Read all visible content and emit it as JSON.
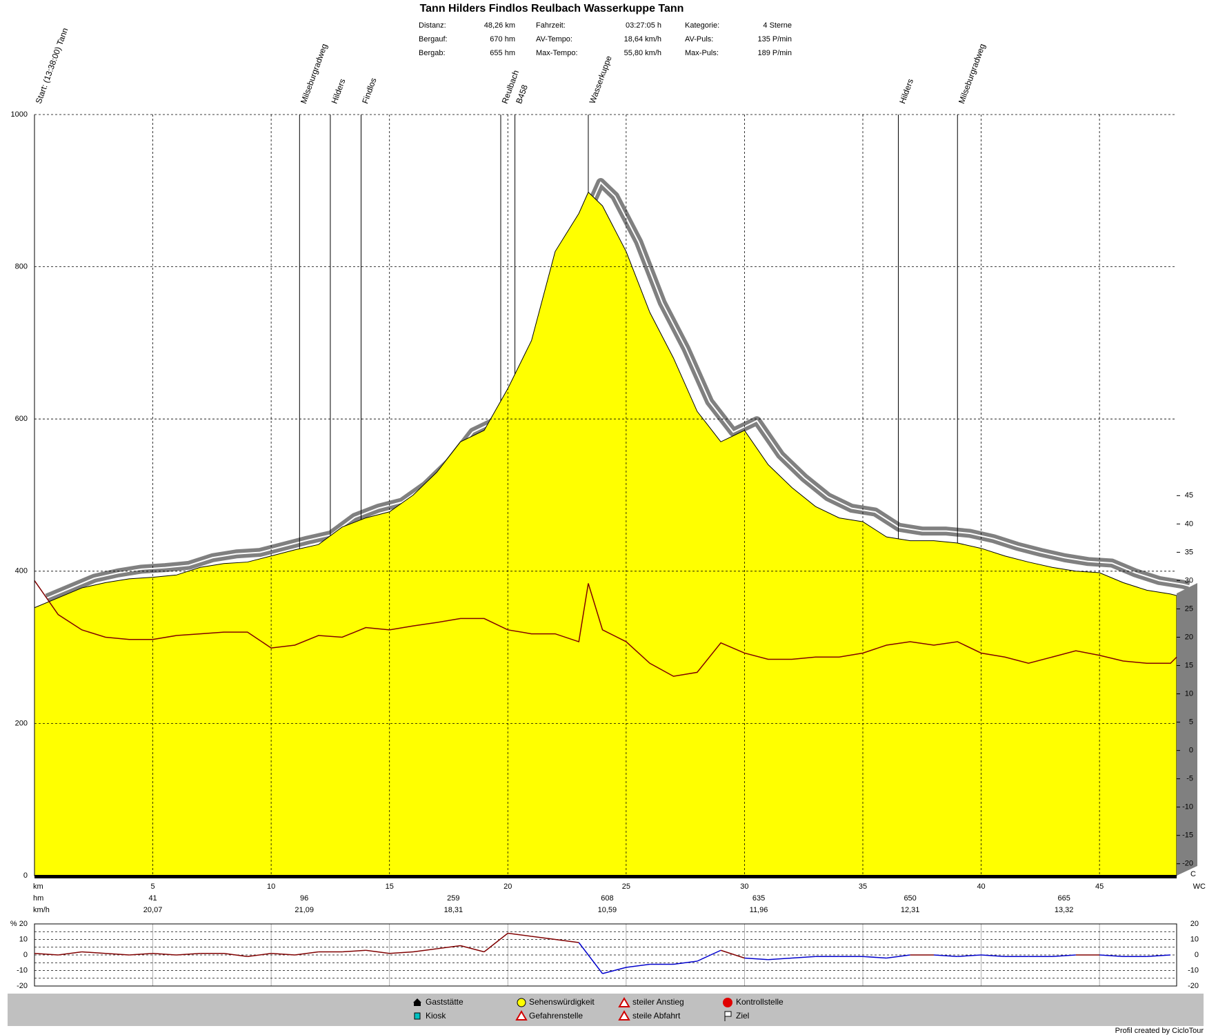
{
  "chart_data": [
    {
      "type": "area",
      "title": "Tann Hilders Findlos Reulbach Wasserkuppe Tann",
      "stats": [
        {
          "label": "Distanz:",
          "value": "48,26 km"
        },
        {
          "label": "Bergauf:",
          "value": "670 hm"
        },
        {
          "label": "Bergab:",
          "value": "655 hm"
        },
        {
          "label": "Fahrzeit:",
          "value": "03:27:05 h"
        },
        {
          "label": "AV-Tempo:",
          "value": "18,64 km/h"
        },
        {
          "label": "Max-Tempo:",
          "value": "55,80 km/h"
        },
        {
          "label": "Kategorie:",
          "value": "4 Sterne"
        },
        {
          "label": "AV-Puls:",
          "value": "135 P/min"
        },
        {
          "label": "Max-Puls:",
          "value": "189 P/min"
        }
      ],
      "xlabel": "km",
      "x": [
        0,
        1,
        2,
        3,
        4,
        5,
        6,
        7,
        8,
        9,
        10,
        11,
        12,
        13,
        14,
        15,
        16,
        17,
        18,
        19,
        20,
        21,
        22,
        23,
        23.4,
        24,
        25,
        26,
        27,
        28,
        29,
        30,
        31,
        32,
        33,
        34,
        35,
        36,
        37,
        38,
        39,
        40,
        41,
        42,
        43,
        44,
        45,
        46,
        47,
        48,
        48.26
      ],
      "series": [
        {
          "color": "#ffff00",
          "values": [
            352,
            365,
            378,
            385,
            390,
            392,
            395,
            405,
            410,
            412,
            420,
            428,
            435,
            458,
            470,
            478,
            500,
            530,
            570,
            585,
            640,
            703,
            820,
            870,
            898,
            880,
            820,
            740,
            680,
            610,
            570,
            585,
            540,
            510,
            485,
            470,
            465,
            445,
            440,
            440,
            437,
            430,
            420,
            412,
            405,
            400,
            398,
            385,
            375,
            370,
            368
          ]
        },
        {
          "color": "#800000",
          "axis": "y2",
          "values": [
            30,
            24,
            21.3,
            20,
            19.6,
            19.6,
            20.3,
            20.6,
            20.9,
            20.9,
            18.1,
            18.6,
            20.3,
            20,
            21.7,
            21.3,
            22,
            22.6,
            23.3,
            23.3,
            21.3,
            20.6,
            20.6,
            19.2,
            29.5,
            21.3,
            19.2,
            15.4,
            13.1,
            13.8,
            19,
            17.2,
            16.1,
            16.1,
            16.5,
            16.5,
            17.2,
            18.6,
            19.2,
            18.6,
            19.2,
            17.2,
            16.5,
            15.4,
            16.5,
            17.6,
            16.8,
            15.8,
            15.4,
            15.4,
            16.5
          ]
        }
      ],
      "xlim": [
        0,
        48.26
      ],
      "xticks": [
        5,
        10,
        15,
        20,
        25,
        30,
        35,
        40,
        45
      ],
      "ylim": [
        0,
        1000
      ],
      "yticks": [
        0,
        200,
        400,
        600,
        800,
        1000
      ],
      "y2lim": [
        -22.1,
        112.3
      ],
      "y2ticks": [
        -20,
        -15,
        -10,
        -5,
        0,
        5,
        10,
        15,
        20,
        25,
        30,
        35,
        40,
        45
      ],
      "grid": true,
      "annotations": [
        {
          "x": 0,
          "text": "Start: (13:38:00) Tann"
        },
        {
          "x": 11.2,
          "text": "Milseburgradweg"
        },
        {
          "x": 12.5,
          "text": "Hilders"
        },
        {
          "x": 13.8,
          "text": "Findlos"
        },
        {
          "x": 19.7,
          "text": "Reulbach"
        },
        {
          "x": 20.3,
          "text": "B458"
        },
        {
          "x": 23.4,
          "text": "Wasserkuppe"
        },
        {
          "x": 36.5,
          "text": "Hilders"
        },
        {
          "x": 39,
          "text": "Milseburgradweg"
        }
      ],
      "summary": {
        "x": [
          5,
          11.4,
          17.7,
          24.2,
          30.6,
          37,
          43.5
        ],
        "series": [
          {
            "name": "hm",
            "color": "#c00000",
            "values": [
              41,
              96,
              259,
              608,
              635,
              650,
              665
            ]
          },
          {
            "name": "km/h",
            "color": "#000000",
            "values": [
              20.07,
              21.09,
              18.31,
              10.59,
              11.96,
              12.31,
              13.32
            ],
            "value_labels": [
              "20,07",
              "21,09",
              "18,31",
              "10,59",
              "11,96",
              "12,31",
              "13,32"
            ]
          }
        ]
      },
      "corner_labels": [
        "C",
        "WC"
      ]
    },
    {
      "type": "line",
      "x": [
        0,
        1,
        2,
        3,
        4,
        5,
        6,
        7,
        8,
        9,
        10,
        11,
        12,
        13,
        14,
        15,
        16,
        17,
        18,
        19,
        20,
        21,
        22,
        23,
        24,
        25,
        26,
        27,
        28,
        29,
        30,
        31,
        32,
        33,
        34,
        35,
        36,
        37,
        38,
        39,
        40,
        41,
        42,
        43,
        44,
        45,
        46,
        47,
        48
      ],
      "values": [
        1,
        0,
        2,
        1,
        0,
        1,
        0,
        1,
        1,
        -1,
        1,
        0,
        2,
        2,
        3,
        1,
        2,
        4,
        6,
        2,
        14,
        12,
        10,
        8,
        -12,
        -8,
        -6,
        -6,
        -4,
        3,
        -2,
        -3,
        -2,
        -1,
        -1,
        -1,
        -2,
        0,
        0,
        -1,
        0,
        -1,
        -1,
        -1,
        0,
        0,
        -1,
        -1,
        0
      ],
      "colors": [
        "#800000",
        "#0000cc"
      ],
      "xlim": [
        0,
        48.26
      ],
      "ylim": [
        -20,
        20
      ],
      "yticks": [
        {
          "value": 20,
          "label": "% 20"
        },
        10,
        0,
        -10,
        -20
      ],
      "minor_yticks": [
        -15,
        -5,
        5,
        15
      ],
      "y2lim": [
        -20,
        20
      ],
      "y2ticks": [
        20,
        10,
        0,
        -10,
        -20
      ]
    }
  ],
  "legend": [
    "Gaststätte",
    "Kiosk",
    "Sehenswürdigkeit",
    "Gefahrenstelle",
    "steiler Anstieg",
    "steile Abfahrt",
    "Kontrollstelle",
    "Ziel"
  ],
  "footer": "Profil created by CicloTour"
}
